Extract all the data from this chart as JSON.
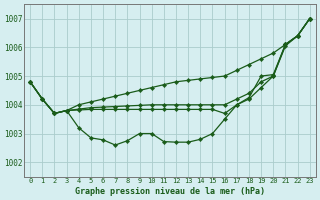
{
  "title": "Graphe pression niveau de la mer (hPa)",
  "background_color": "#d6eef0",
  "grid_color": "#aacccc",
  "line_color": "#1a5c1a",
  "x_ticks": [
    0,
    1,
    2,
    3,
    4,
    5,
    6,
    7,
    8,
    9,
    10,
    11,
    12,
    13,
    14,
    15,
    16,
    17,
    18,
    19,
    20,
    21,
    22,
    23
  ],
  "ylim": [
    1001.5,
    1007.5
  ],
  "yticks": [
    1002,
    1003,
    1004,
    1005,
    1006,
    1007
  ],
  "line_top": [
    1004.8,
    1004.2,
    1003.7,
    1003.8,
    1004.0,
    1004.1,
    1004.2,
    1004.3,
    1004.4,
    1004.5,
    1004.6,
    1004.7,
    1004.8,
    1004.85,
    1004.9,
    1004.95,
    1005.0,
    1005.2,
    1005.4,
    1005.6,
    1005.8,
    1006.1,
    1006.4,
    1007.0
  ],
  "line_mid1": [
    1004.8,
    1004.2,
    1003.7,
    1003.8,
    1003.85,
    1003.9,
    1003.92,
    1003.94,
    1003.96,
    1003.98,
    1004.0,
    1004.0,
    1004.0,
    1004.0,
    1004.0,
    1004.0,
    1004.0,
    1004.2,
    1004.4,
    1004.8,
    1005.0,
    1006.1,
    1006.4,
    1007.0
  ],
  "line_mid2": [
    1004.8,
    1004.2,
    1003.7,
    1003.8,
    1003.82,
    1003.84,
    1003.84,
    1003.84,
    1003.84,
    1003.84,
    1003.84,
    1003.84,
    1003.84,
    1003.84,
    1003.84,
    1003.84,
    1003.7,
    1004.0,
    1004.2,
    1004.6,
    1005.0,
    1006.05,
    1006.4,
    1007.0
  ],
  "line_curve": [
    1004.8,
    1004.2,
    1003.7,
    1003.8,
    1003.2,
    1002.85,
    1002.78,
    1002.6,
    1002.75,
    1003.0,
    1003.0,
    1002.72,
    1002.7,
    1002.7,
    1002.8,
    1003.0,
    1003.5,
    1004.0,
    1004.25,
    1005.0,
    1005.05,
    1006.1,
    1006.4,
    1007.0
  ]
}
